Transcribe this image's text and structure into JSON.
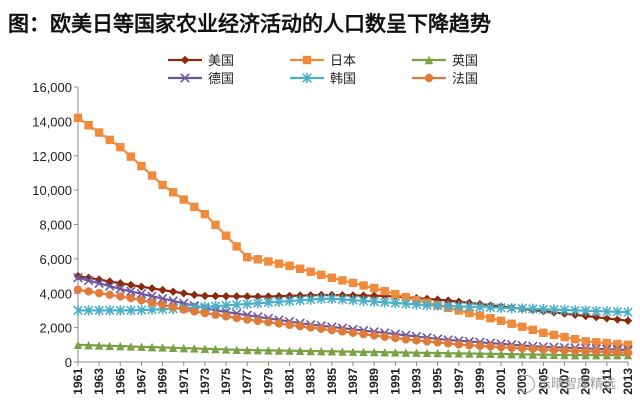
{
  "title": "图：欧美日等国家农业经济活动的人口数呈下降趋势",
  "watermark": "乐晴智库精选",
  "chart_data": {
    "type": "line",
    "title": "图：欧美日等国家农业经济活动的人口数呈下降趋势",
    "xlabel": "",
    "ylabel": "",
    "ylim": [
      0,
      16000
    ],
    "yticks": [
      0,
      2000,
      4000,
      6000,
      8000,
      10000,
      12000,
      14000,
      16000
    ],
    "ytick_labels": [
      "0",
      "2,000",
      "4,000",
      "6,000",
      "8,000",
      "10,000",
      "12,000",
      "14,000",
      "16,000"
    ],
    "x_start": 1961,
    "x_end": 2013,
    "xtick_labels": [
      "1961",
      "1963",
      "1965",
      "1967",
      "1969",
      "1971",
      "1973",
      "1975",
      "1977",
      "1979",
      "1981",
      "1983",
      "1985",
      "1987",
      "1989",
      "1991",
      "1993",
      "1995",
      "1997",
      "1999",
      "2001",
      "2003",
      "2005",
      "2007",
      "2009",
      "2011",
      "2013"
    ],
    "legend_position": "top",
    "series": [
      {
        "name": "美国",
        "color": "#8b2a0e",
        "marker": "diamond",
        "values": [
          5000,
          4400,
          3850,
          3800,
          3900,
          3850,
          3600,
          3200,
          2800,
          2400
        ]
      },
      {
        "name": "日本",
        "color": "#f08a3c",
        "marker": "square",
        "values": [
          14200,
          12500,
          10300,
          8600,
          6100,
          5600,
          4900,
          4300,
          3600,
          3000,
          2400,
          1700,
          1200,
          1000
        ]
      },
      {
        "name": "英国",
        "color": "#7ba145",
        "marker": "triangle",
        "values": [
          1000,
          900,
          800,
          700,
          650,
          600,
          550,
          500,
          450,
          400,
          400
        ]
      },
      {
        "name": "德国",
        "color": "#6b56a0",
        "marker": "x",
        "values": [
          4900,
          4200,
          3600,
          3000,
          2600,
          2200,
          1900,
          1600,
          1300,
          1100,
          900,
          800,
          700
        ]
      },
      {
        "name": "韩国",
        "color": "#4bafc8",
        "marker": "star",
        "values": [
          3000,
          3000,
          3100,
          3300,
          3500,
          3700,
          3500,
          3300,
          3200,
          3100,
          3000,
          2900
        ]
      },
      {
        "name": "法国",
        "color": "#e07b39",
        "marker": "circle",
        "values": [
          4200,
          3700,
          3000,
          2500,
          2100,
          1700,
          1300,
          1000,
          800,
          650,
          550
        ]
      }
    ]
  }
}
